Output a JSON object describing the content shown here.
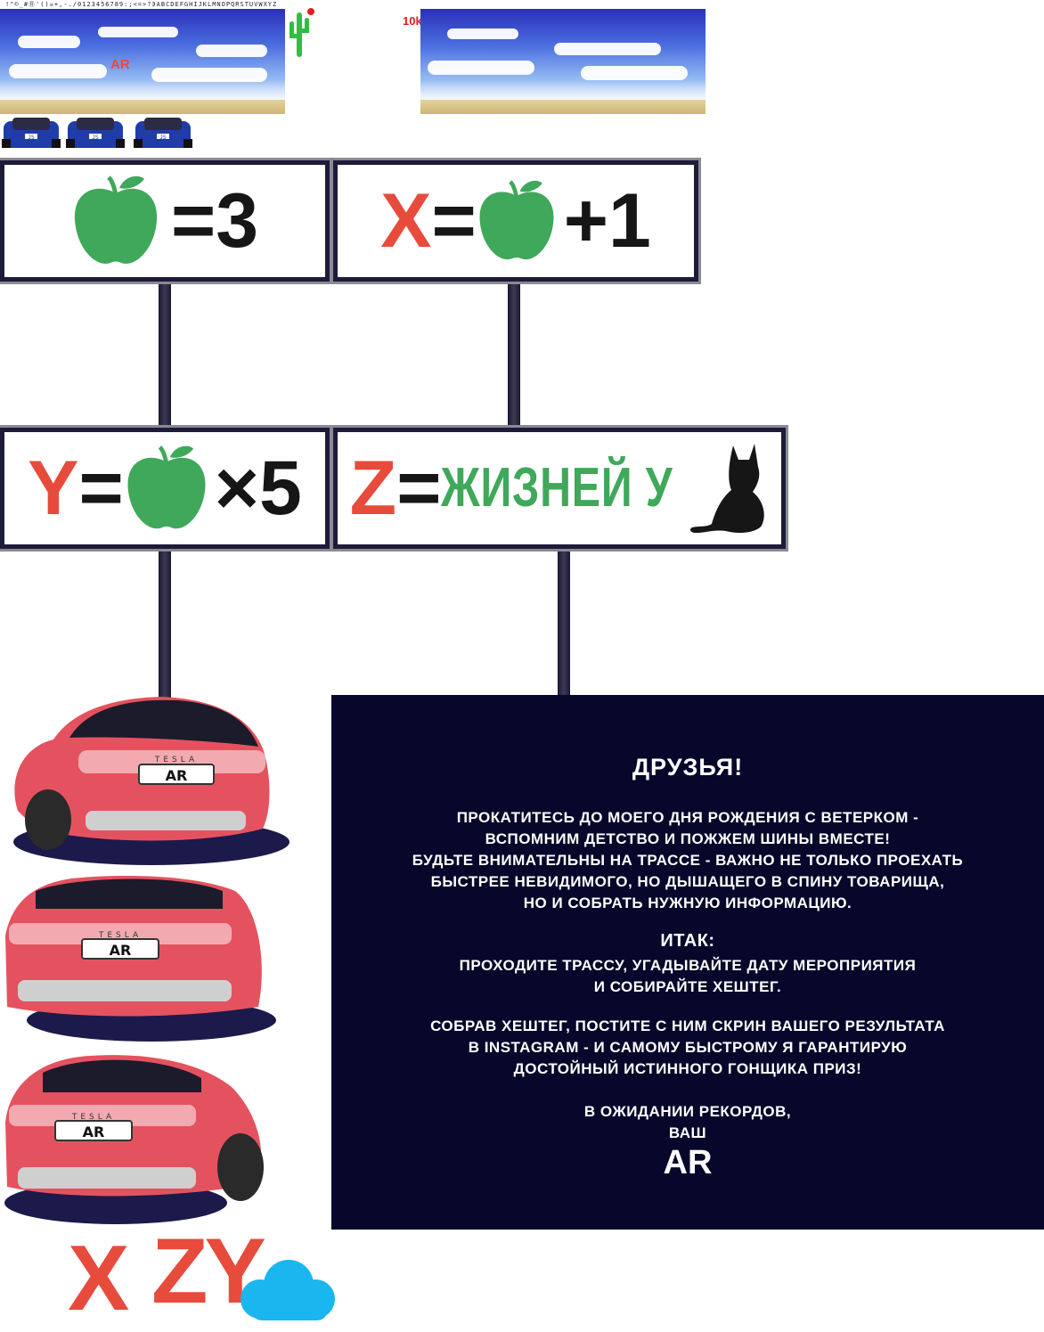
{
  "sprite_strip": "!\"©_#Ⓡ'()☠+,-./0123456789:;<=>?ЭABCDEFGHIJKLMNOPQRSTUVWXYZ",
  "game": {
    "sky_label": "AR",
    "score": "10k",
    "mini_car_plate": "JS",
    "sky_colors": {
      "top": "#2a2fb8",
      "bottom": "#c9def9",
      "sand": "#e3d29a"
    },
    "cactus_icon": "cactus-icon",
    "mini_cars_count": 3
  },
  "puzzle": {
    "panel1": {
      "apple_icon": "apple-icon",
      "rest": "=3"
    },
    "panel2": {
      "var": "X",
      "eq": "=",
      "rest": "+1"
    },
    "panel3": {
      "var": "Y",
      "eq": "=",
      "rest": "×5"
    },
    "panel4": {
      "var": "Z",
      "eq": "=",
      "word": "ЖИЗНЕЙ У",
      "cat_icon": "cat-icon"
    }
  },
  "cars": [
    {
      "brand": "TESLA",
      "plate": "AR"
    },
    {
      "brand": "TESLA",
      "plate": "AR"
    },
    {
      "brand": "TESLA",
      "plate": "AR"
    }
  ],
  "info": {
    "heading": "ДРУЗЬЯ!",
    "p1": [
      "ПРОКАТИТЕСЬ ДО МОЕГО ДНЯ РОЖДЕНИЯ С ВЕТЕРКОМ -",
      "ВСПОМНИМ ДЕТСТВО И ПОЖЖЕМ ШИНЫ ВМЕСТЕ!",
      "БУДЬТЕ ВНИМАТЕЛЬНЫ НА ТРАССЕ - ВАЖНО НЕ ТОЛЬКО ПРОЕХАТЬ",
      "БЫСТРЕЕ НЕВИДИМОГО, НО ДЫШАЩЕГО В СПИНУ ТОВАРИЩА,",
      "НО И СОБРАТЬ НУЖНУЮ ИНФОРМАЦИЮ."
    ],
    "subheading": "ИТАК:",
    "p2": [
      "ПРОХОДИТЕ ТРАССУ, УГАДЫВАЙТЕ ДАТУ МЕРОПРИЯТИЯ",
      "И СОБИРАЙТЕ ХЕШТЕГ."
    ],
    "p3": [
      "СОБРАВ ХЕШТЕГ, ПОСТИТЕ С НИМ СКРИН ВАШЕГО РЕЗУЛЬТАТА",
      "В INSTAGRAM - И САМОМУ БЫСТРОМУ Я ГАРАНТИРУЮ",
      "ДОСТОЙНЫЙ ИСТИННОГО ГОНЩИКА ПРИЗ!"
    ],
    "closing": [
      "В ОЖИДАНИИ РЕКОРДОВ,",
      "ВАШ"
    ],
    "signature": "AR"
  },
  "bottom_letters": {
    "left": "X",
    "right": "ZY",
    "cloud_icon": "cloud-icon"
  },
  "colors": {
    "accent_red": "#e74b3c",
    "apple_green": "#3fa85a",
    "panel_border": "#1e1b3a",
    "info_bg": "#06072a",
    "car_red": "#e5525f"
  }
}
